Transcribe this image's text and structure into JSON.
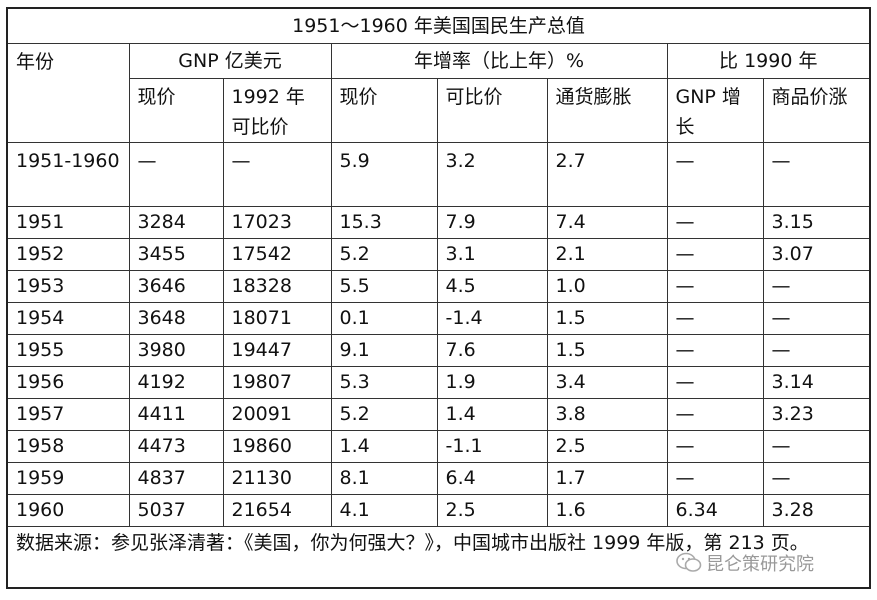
{
  "table": {
    "title": "1951～1960 年美国国民生产总值",
    "header_year": "年份",
    "header_gnp": "GNP 亿美元",
    "header_growth": "年增率（比上年）%",
    "header_vs1990": "比 1990 年",
    "sub_current_price": "现价",
    "sub_1992_comparable": "1992 年可比价",
    "sub_growth_current": "现价",
    "sub_growth_comparable": "可比价",
    "sub_inflation": "通货膨胀",
    "sub_gnp_growth": "GNP 增长",
    "sub_price_rise": "商品价涨",
    "summary_row": [
      "1951-1960",
      "—",
      "—",
      "5.9",
      "3.2",
      "2.7",
      "—",
      "—"
    ],
    "rows": [
      [
        "1951",
        "3284",
        "17023",
        "15.3",
        "7.9",
        "7.4",
        "—",
        "3.15"
      ],
      [
        "1952",
        "3455",
        "17542",
        "5.2",
        "3.1",
        "2.1",
        "—",
        "3.07"
      ],
      [
        "1953",
        "3646",
        "18328",
        "5.5",
        "4.5",
        "1.0",
        "—",
        "—"
      ],
      [
        "1954",
        "3648",
        "18071",
        "0.1",
        "-1.4",
        "1.5",
        "—",
        "—"
      ],
      [
        "1955",
        "3980",
        "19447",
        "9.1",
        "7.6",
        "1.5",
        "—",
        "—"
      ],
      [
        "1956",
        "4192",
        "19807",
        "5.3",
        "1.9",
        "3.4",
        "—",
        "3.14"
      ],
      [
        "1957",
        "4411",
        "20091",
        "5.2",
        "1.4",
        "3.8",
        "—",
        "3.23"
      ],
      [
        "1958",
        "4473",
        "19860",
        "1.4",
        "-1.1",
        "2.5",
        "—",
        "—"
      ],
      [
        "1959",
        "4837",
        "21130",
        "8.1",
        "6.4",
        "1.7",
        "—",
        "—"
      ],
      [
        "1960",
        "5037",
        "21654",
        "4.1",
        "2.5",
        "1.6",
        "6.34",
        "3.28"
      ]
    ],
    "source_note": "数据来源：参见张泽清著：《美国，你为何强大？》，中国城市出版社 1999 年版，第 213 页。"
  },
  "watermark": {
    "text": "昆仑策研究院",
    "icon": "wechat-icon"
  }
}
